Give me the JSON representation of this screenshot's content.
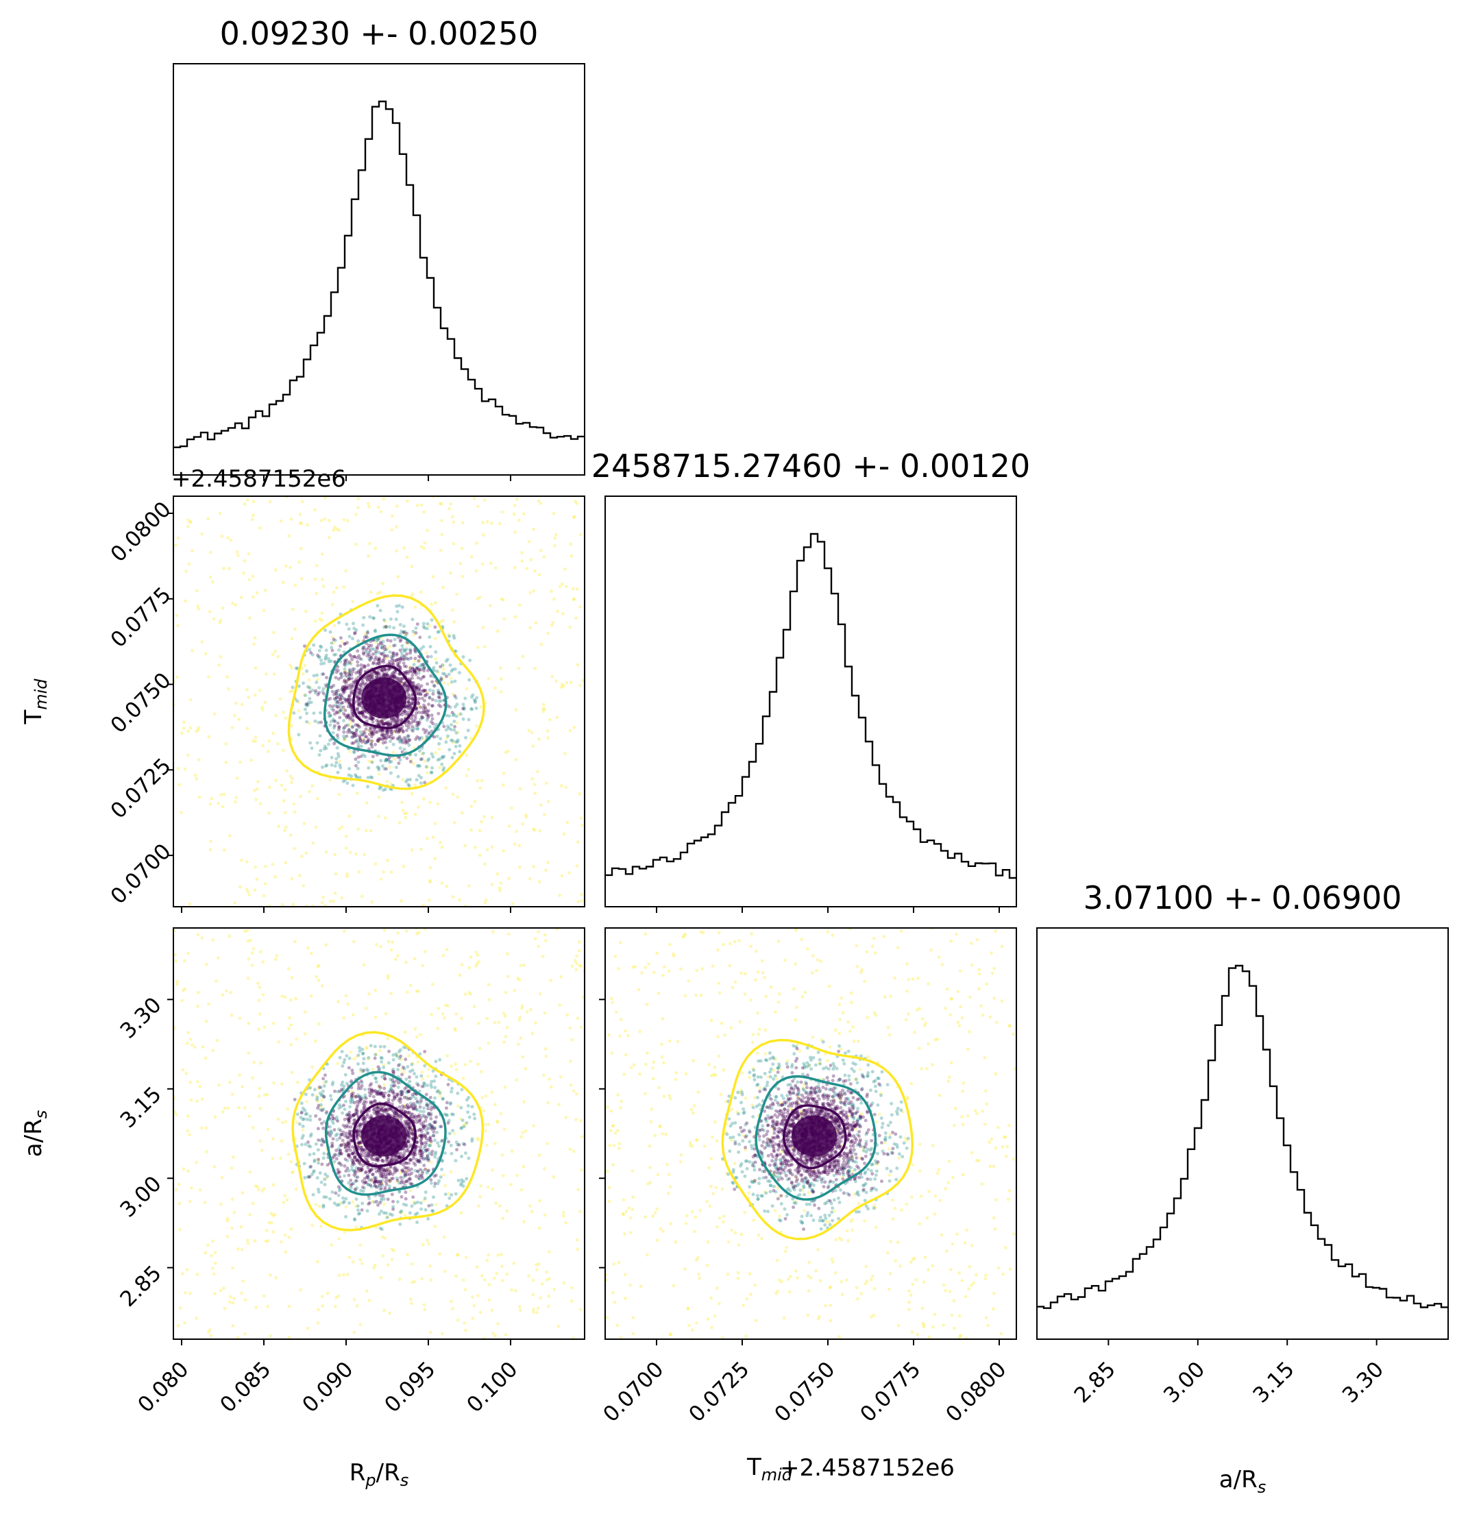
{
  "chart_data": {
    "type": "corner",
    "colors": {
      "hist_line": "#000000",
      "contour_inner": "#440154",
      "contour_mid": "#21908d",
      "contour_outer": "#fde725",
      "points_core": "#440154"
    },
    "parameters": [
      {
        "name": "R_p/R_s",
        "label": "Rp/Rs",
        "label_main": "R",
        "label_sub": "p",
        "label_rest": "/R",
        "label_sub2": "s",
        "range": [
          0.0795,
          0.1045
        ],
        "ticks": [
          0.08,
          0.085,
          0.09,
          0.095,
          0.1
        ],
        "tick_labels": [
          "0.080",
          "0.085",
          "0.090",
          "0.095",
          "0.100"
        ],
        "median": 0.0923,
        "sigma": 0.0025,
        "title": "0.09230 +- 0.00250",
        "offset": ""
      },
      {
        "name": "T_mid",
        "label": "Tmid",
        "label_main": "T",
        "label_sub": "mid",
        "label_rest": "",
        "label_sub2": "",
        "range": [
          0.0685,
          0.0805
        ],
        "ticks": [
          0.07,
          0.0725,
          0.075,
          0.0775,
          0.08
        ],
        "tick_labels": [
          "0.0700",
          "0.0725",
          "0.0750",
          "0.0775",
          "0.0800"
        ],
        "median": 0.0746,
        "sigma": 0.0012,
        "title": "2458715.27460 +- 0.00120",
        "offset": "+2.4587152e6"
      },
      {
        "name": "a/R_s",
        "label": "a/Rs",
        "label_main": "a/R",
        "label_sub": "s",
        "label_rest": "",
        "label_sub2": "",
        "range": [
          2.73,
          3.42
        ],
        "ticks": [
          2.85,
          3.0,
          3.15,
          3.3
        ],
        "tick_labels": [
          "2.85",
          "3.00",
          "3.15",
          "3.30"
        ],
        "median": 3.071,
        "sigma": 0.069,
        "title": "3.07100 +- 0.06900",
        "offset": ""
      }
    ],
    "histograms": [
      {
        "param": 0,
        "bins": 60,
        "peak_rel": 1.0
      },
      {
        "param": 1,
        "bins": 60,
        "peak_rel": 1.0
      },
      {
        "param": 2,
        "bins": 60,
        "peak_rel": 1.0
      }
    ]
  }
}
